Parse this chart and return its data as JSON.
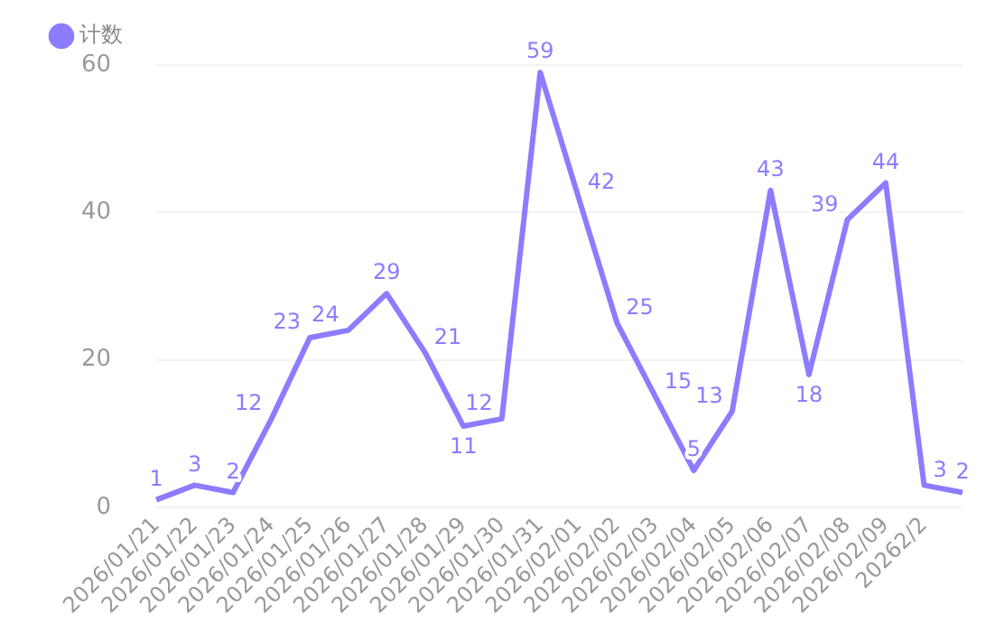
{
  "chart_data": {
    "type": "line",
    "categories": [
      "2026/01/21",
      "2026/01/22",
      "2026/01/23",
      "2026/01/24",
      "2026/01/25",
      "2026/01/26",
      "2026/01/27",
      "2026/01/28",
      "2026/01/29",
      "2026/01/30",
      "2026/01/31",
      "2026/02/01",
      "2026/02/02",
      "2026/02/03",
      "2026/02/04",
      "2026/02/05",
      "2026/02/06",
      "2026/02/07",
      "2026/02/08",
      "2026/02/09",
      "20262/2",
      null
    ],
    "series": [
      {
        "name": "计数",
        "color": "#8c7cff",
        "values": [
          1,
          3,
          2,
          12,
          23,
          24,
          29,
          21,
          11,
          12,
          59,
          42,
          25,
          15,
          5,
          13,
          43,
          18,
          39,
          44,
          3,
          2
        ]
      }
    ],
    "ylim": [
      0,
      60
    ],
    "yticks": [
      0,
      20,
      40,
      60
    ],
    "grid": "y",
    "legend": "top left",
    "marker": "none",
    "data_labels": true
  }
}
